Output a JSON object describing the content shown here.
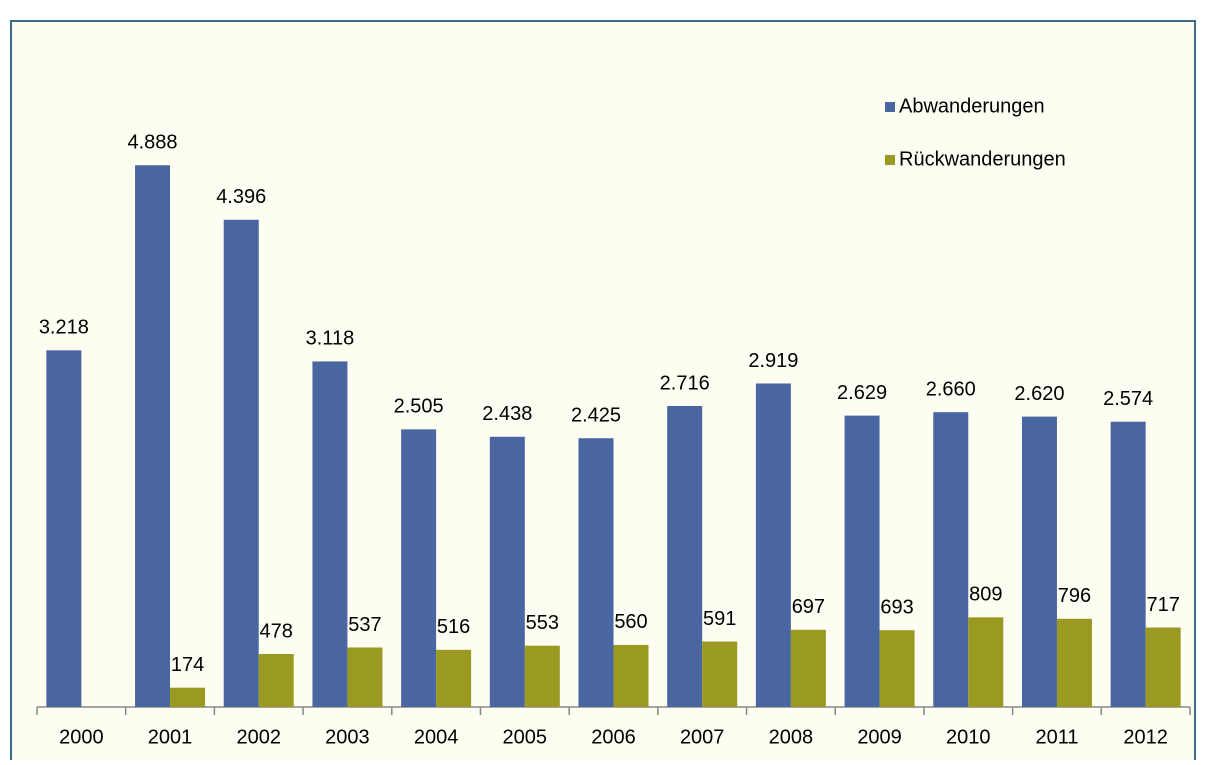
{
  "chart_data": {
    "type": "bar",
    "categories": [
      "2000",
      "2001",
      "2002",
      "2003",
      "2004",
      "2005",
      "2006",
      "2007",
      "2008",
      "2009",
      "2010",
      "2011",
      "2012"
    ],
    "series": [
      {
        "name": "Abwanderungen",
        "color": "#4a66a0",
        "values": [
          3218,
          4888,
          4396,
          3118,
          2505,
          2438,
          2425,
          2716,
          2919,
          2629,
          2660,
          2620,
          2574
        ],
        "value_labels": [
          "3.218",
          "4.888",
          "4.396",
          "3.118",
          "2.505",
          "2.438",
          "2.425",
          "2.716",
          "2.919",
          "2.629",
          "2.660",
          "2.620",
          "2.574"
        ]
      },
      {
        "name": "Rückwanderungen",
        "color": "#9a9a22",
        "values": [
          null,
          174,
          478,
          537,
          516,
          553,
          560,
          591,
          697,
          693,
          809,
          796,
          717
        ]
      }
    ],
    "ylim": [
      0,
      6000
    ],
    "legend": "upper right"
  }
}
